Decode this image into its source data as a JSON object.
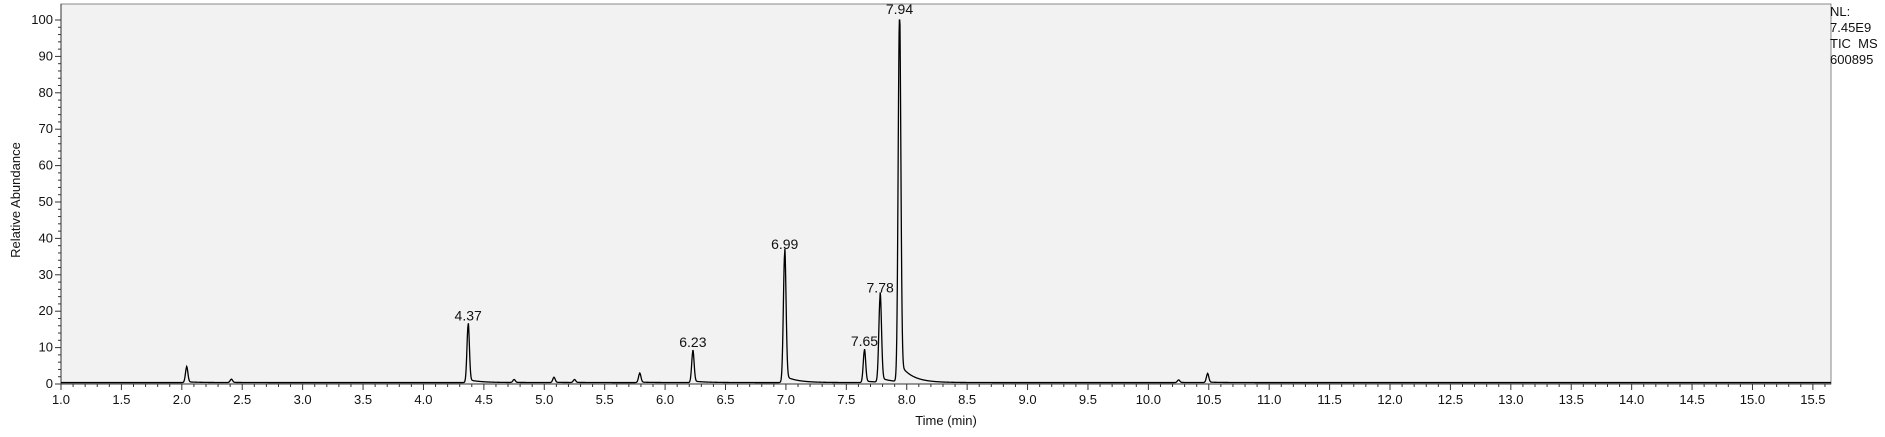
{
  "chart_data": {
    "type": "line",
    "xlabel": "Time (min)",
    "ylabel": "Relative Abundance",
    "xlim": [
      1.0,
      15.65
    ],
    "ylim": [
      0,
      100
    ],
    "x_tick_labels": [
      "1.0",
      "1.5",
      "2.0",
      "2.5",
      "3.0",
      "3.5",
      "4.0",
      "4.5",
      "5.0",
      "5.5",
      "6.0",
      "6.5",
      "7.0",
      "7.5",
      "8.0",
      "8.5",
      "9.0",
      "9.5",
      "10.0",
      "10.5",
      "11.0",
      "11.5",
      "12.0",
      "12.5",
      "13.0",
      "13.5",
      "14.0",
      "14.5",
      "15.0",
      "15.5"
    ],
    "y_tick_labels": [
      "0",
      "10",
      "20",
      "30",
      "40",
      "50",
      "60",
      "70",
      "80",
      "90",
      "100"
    ],
    "background_color": "#f2f2f2",
    "line_color": "#000000",
    "baseline": 0.4,
    "peaks": [
      {
        "rt": 2.04,
        "height": 4.2
      },
      {
        "rt": 2.41,
        "height": 0.9
      },
      {
        "rt": 4.37,
        "height": 15.8
      },
      {
        "rt": 4.75,
        "height": 0.8
      },
      {
        "rt": 5.08,
        "height": 1.4
      },
      {
        "rt": 5.25,
        "height": 0.8
      },
      {
        "rt": 5.79,
        "height": 2.5
      },
      {
        "rt": 6.23,
        "height": 8.5
      },
      {
        "rt": 6.99,
        "height": 35.5
      },
      {
        "rt": 7.65,
        "height": 8.8
      },
      {
        "rt": 7.78,
        "height": 23.5
      },
      {
        "rt": 7.94,
        "height": 100
      },
      {
        "rt": 10.25,
        "height": 0.7
      },
      {
        "rt": 10.49,
        "height": 2.4
      }
    ],
    "peak_labels": [
      {
        "text": "4.37",
        "rt": 4.37,
        "height": 15.8
      },
      {
        "text": "6.23",
        "rt": 6.23,
        "height": 8.5
      },
      {
        "text": "6.99",
        "rt": 6.99,
        "height": 35.5
      },
      {
        "text": "7.65",
        "rt": 7.65,
        "height": 8.8
      },
      {
        "text": "7.78",
        "rt": 7.78,
        "height": 23.5
      },
      {
        "text": "7.94",
        "rt": 7.94,
        "height": 100
      }
    ]
  },
  "info": {
    "nl_label": "NL:",
    "nl_value": "7.45E9",
    "trace": "TIC  MS",
    "file": "600895"
  }
}
